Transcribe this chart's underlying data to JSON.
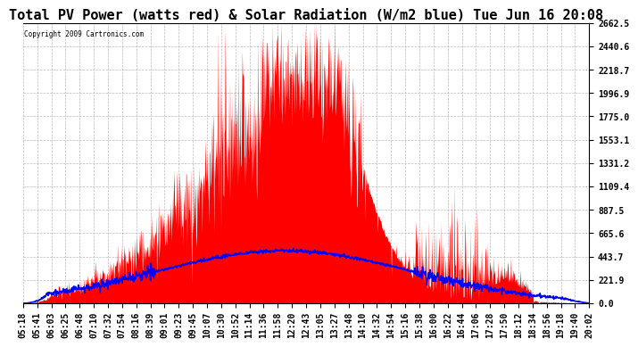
{
  "title": "Total PV Power (watts red) & Solar Radiation (W/m2 blue) Tue Jun 16 20:08",
  "copyright_text": "Copyright 2009 Cartronics.com",
  "y_max": 2662.5,
  "y_min": 0.0,
  "y_ticks": [
    0.0,
    221.9,
    443.7,
    665.6,
    887.5,
    1109.4,
    1331.2,
    1553.1,
    1775.0,
    1996.9,
    2218.7,
    2440.6,
    2662.5
  ],
  "background_color": "#ffffff",
  "plot_bg_color": "#ffffff",
  "grid_color": "#aaaaaa",
  "fill_color": "#ff0000",
  "line_color": "#0000ff",
  "title_fontsize": 11,
  "tick_label_fontsize": 7,
  "x_tick_labels": [
    "05:18",
    "05:41",
    "06:03",
    "06:25",
    "06:48",
    "07:10",
    "07:32",
    "07:54",
    "08:16",
    "08:39",
    "09:01",
    "09:23",
    "09:45",
    "10:07",
    "10:30",
    "10:52",
    "11:14",
    "11:36",
    "11:58",
    "12:20",
    "12:43",
    "13:05",
    "13:27",
    "13:48",
    "14:10",
    "14:32",
    "14:54",
    "15:16",
    "15:38",
    "16:00",
    "16:22",
    "16:44",
    "17:06",
    "17:28",
    "17:50",
    "18:12",
    "18:34",
    "18:56",
    "19:18",
    "19:40",
    "20:02"
  ]
}
